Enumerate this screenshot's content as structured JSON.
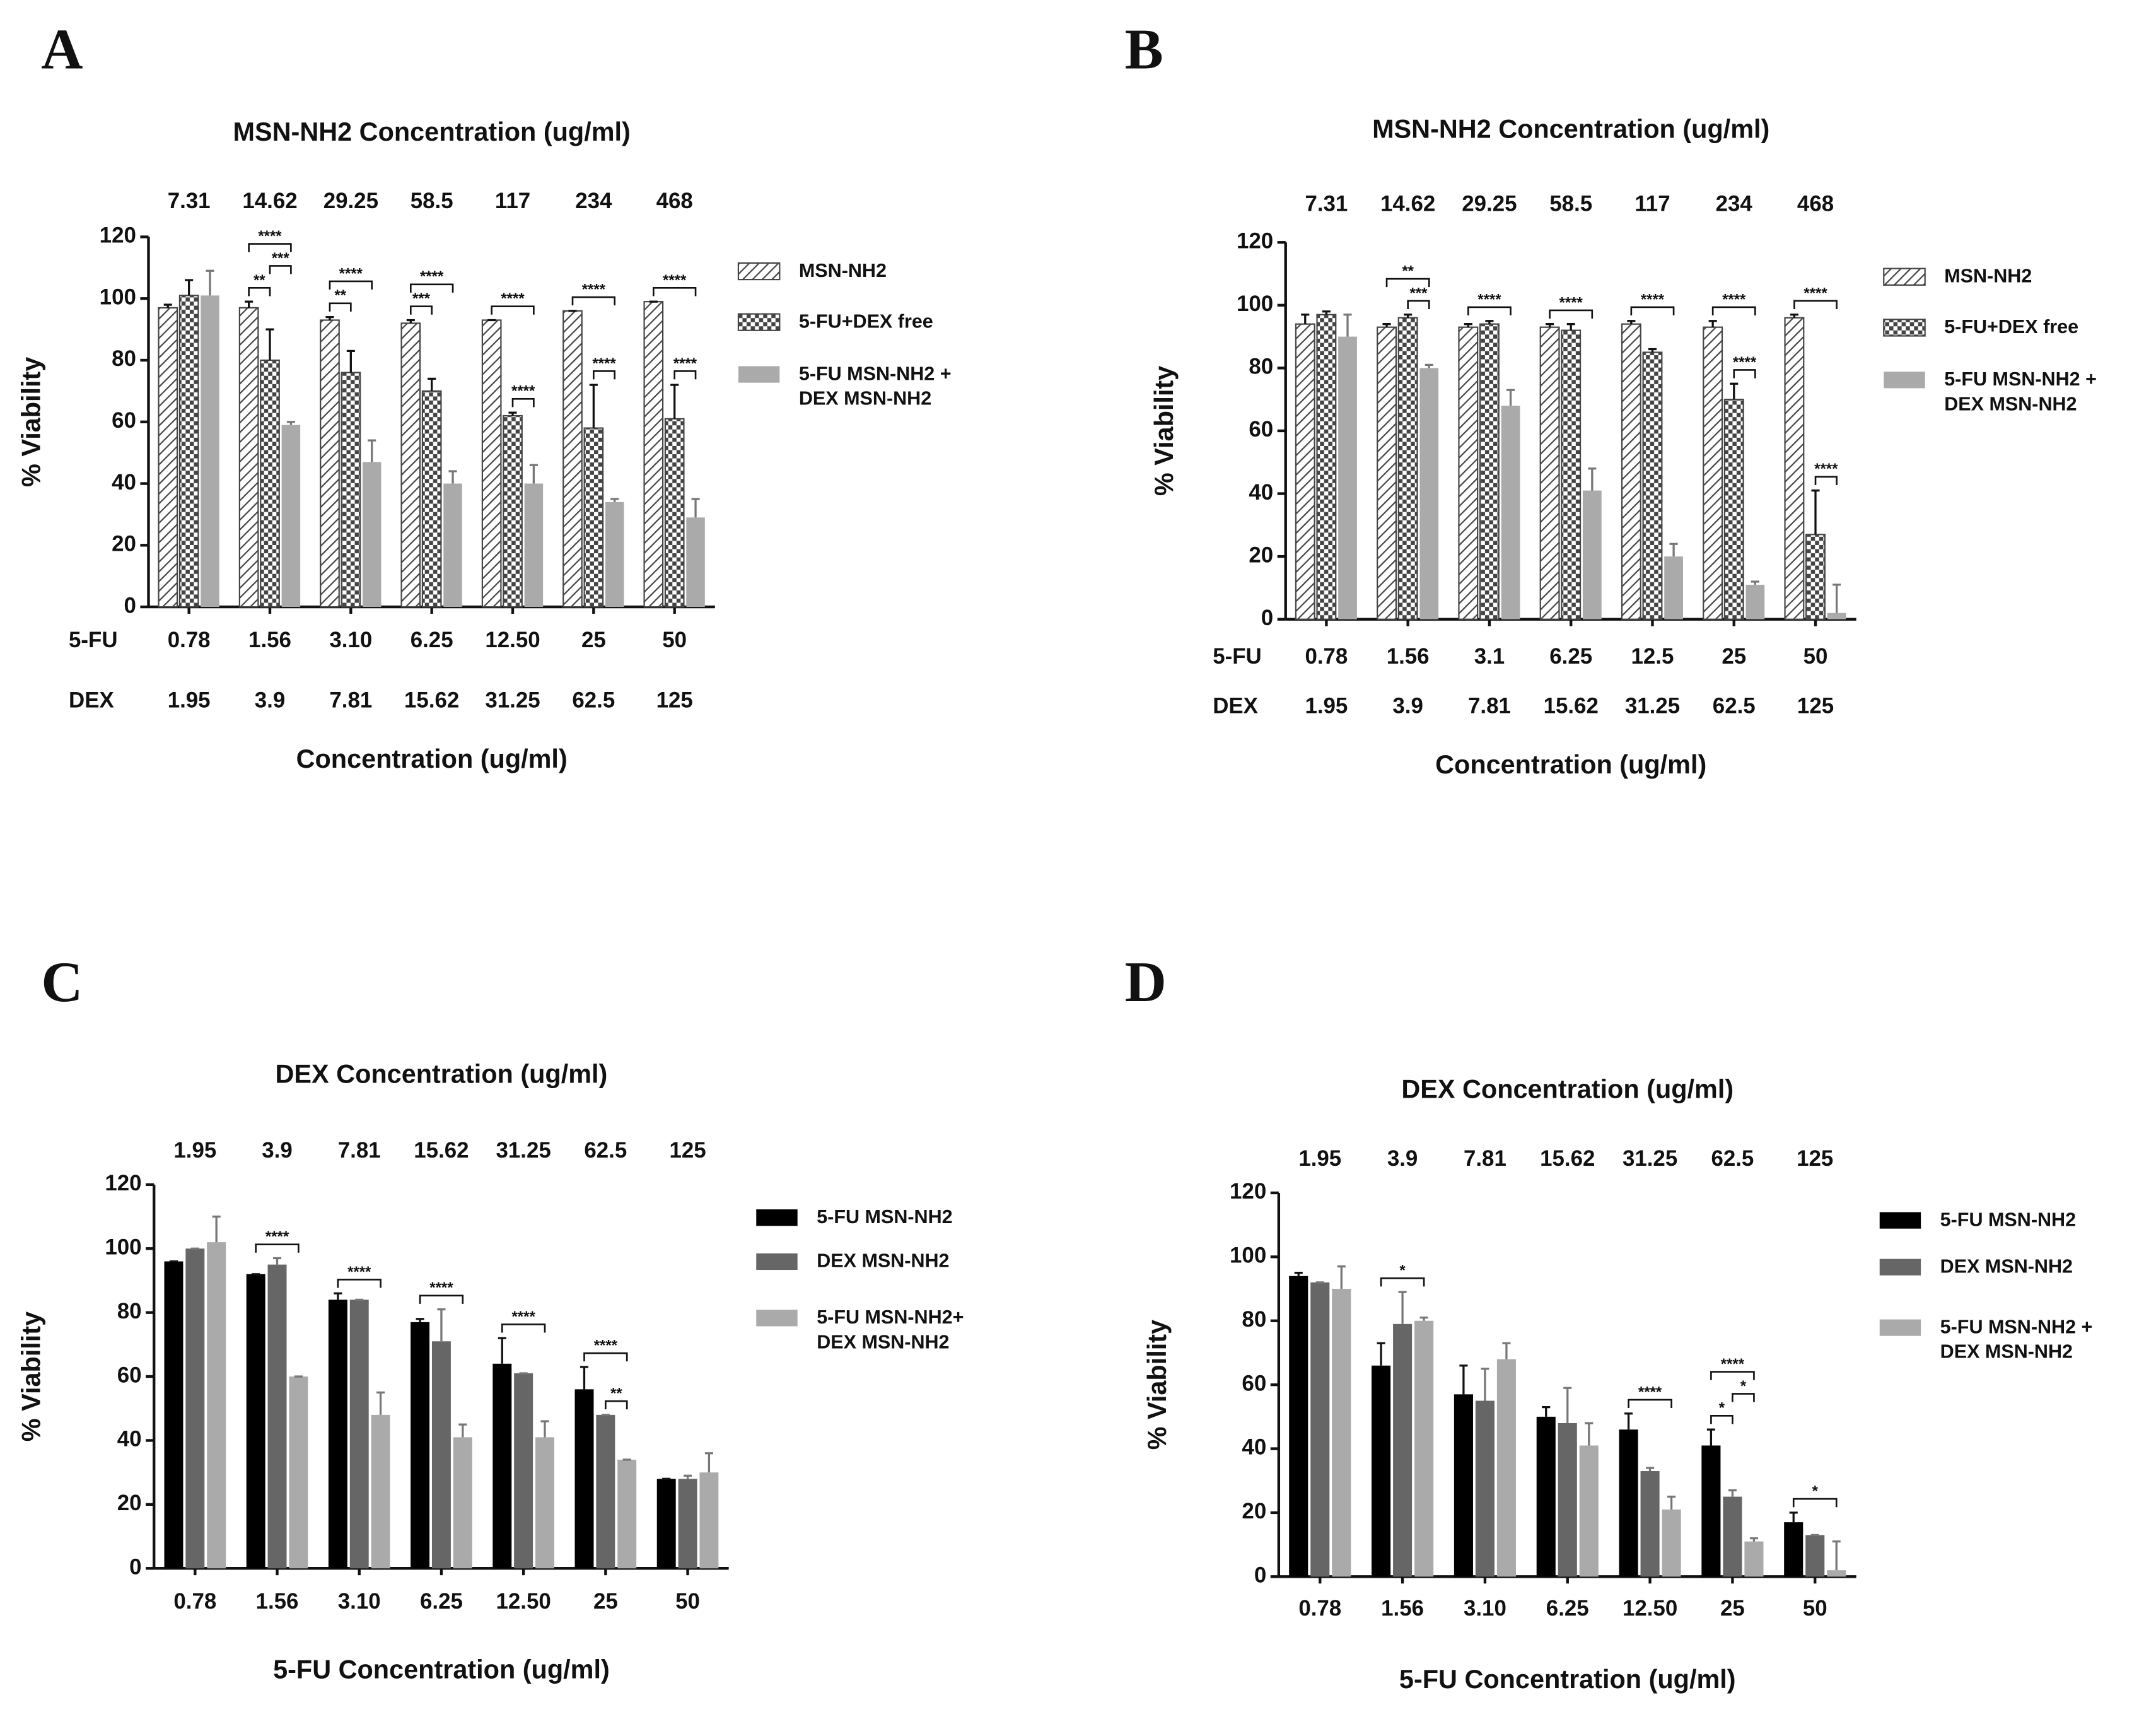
{
  "chart_data": [
    {
      "type": "bar",
      "panel": "A",
      "title": "MSN-NH2 Concentration (ug/ml)",
      "top_categories": [
        "7.31",
        "14.62",
        "29.25",
        "58.5",
        "117",
        "234",
        "468"
      ],
      "categories": [
        "0.78",
        "1.56",
        "3.10",
        "6.25",
        "12.50",
        "25",
        "50"
      ],
      "dex_categories": [
        "1.95",
        "3.9",
        "7.81",
        "15.62",
        "31.25",
        "62.5",
        "125"
      ],
      "row_labels": [
        "5-FU",
        "DEX"
      ],
      "xlabel": "Concentration (ug/ml)",
      "ylabel": "% Viability",
      "ylim": [
        0,
        120
      ],
      "yticks": [
        0,
        20,
        40,
        60,
        80,
        100,
        120
      ],
      "series": [
        {
          "name": "MSN-NH2",
          "color": "#555555",
          "fill_style": "hatch",
          "values": [
            97,
            97,
            93,
            92,
            93,
            96,
            99
          ],
          "errors": [
            1,
            2,
            1,
            1,
            0,
            0,
            0
          ]
        },
        {
          "name": "5-FU+DEX free",
          "color": "#555555",
          "fill_style": "checker",
          "values": [
            101,
            80,
            76,
            70,
            62,
            58,
            61
          ],
          "errors": [
            5,
            10,
            7,
            4,
            1,
            14,
            11
          ]
        },
        {
          "name": "5-FU MSN-NH2 + DEX MSN-NH2",
          "color": "#aaaaaa",
          "fill_style": "solid",
          "values": [
            101,
            59,
            47,
            40,
            40,
            34,
            29
          ],
          "errors": [
            8,
            1,
            7,
            4,
            6,
            1,
            6
          ]
        }
      ],
      "annotations": [
        {
          "label": "**",
          "category": 1,
          "between": [
            0,
            1
          ]
        },
        {
          "label": "***",
          "category": 1,
          "between": [
            1,
            2
          ]
        },
        {
          "label": "****",
          "category": 1,
          "between": [
            0,
            2
          ]
        },
        {
          "label": "**",
          "category": 2,
          "between": [
            0,
            1
          ]
        },
        {
          "label": "****",
          "category": 2,
          "between": [
            0,
            2
          ]
        },
        {
          "label": "***",
          "category": 3,
          "between": [
            0,
            1
          ]
        },
        {
          "label": "****",
          "category": 3,
          "between": [
            0,
            2
          ]
        },
        {
          "label": "****",
          "category": 4,
          "between": [
            1,
            2
          ]
        },
        {
          "label": "****",
          "category": 4,
          "between": [
            0,
            2
          ]
        },
        {
          "label": "****",
          "category": 5,
          "between": [
            1,
            2
          ]
        },
        {
          "label": "****",
          "category": 5,
          "between": [
            0,
            2
          ]
        },
        {
          "label": "****",
          "category": 6,
          "between": [
            1,
            2
          ]
        },
        {
          "label": "****",
          "category": 6,
          "between": [
            0,
            2
          ]
        }
      ]
    },
    {
      "type": "bar",
      "panel": "B",
      "title": "MSN-NH2 Concentration (ug/ml)",
      "top_categories": [
        "7.31",
        "14.62",
        "29.25",
        "58.5",
        "117",
        "234",
        "468"
      ],
      "categories": [
        "0.78",
        "1.56",
        "3.1",
        "6.25",
        "12.5",
        "25",
        "50"
      ],
      "dex_categories": [
        "1.95",
        "3.9",
        "7.81",
        "15.62",
        "31.25",
        "62.5",
        "125"
      ],
      "row_labels": [
        "5-FU",
        "DEX"
      ],
      "xlabel": "Concentration (ug/ml)",
      "ylabel": "% Viability",
      "ylim": [
        0,
        120
      ],
      "yticks": [
        0,
        20,
        40,
        60,
        80,
        100,
        120
      ],
      "series": [
        {
          "name": "MSN-NH2",
          "color": "#555555",
          "fill_style": "hatch",
          "values": [
            94,
            93,
            93,
            93,
            94,
            93,
            96
          ],
          "errors": [
            3,
            1,
            1,
            1,
            1,
            2,
            1
          ]
        },
        {
          "name": "5-FU+DEX free",
          "color": "#555555",
          "fill_style": "checker",
          "values": [
            97,
            96,
            94,
            92,
            85,
            70,
            27
          ],
          "errors": [
            1,
            1,
            1,
            2,
            1,
            5,
            14
          ]
        },
        {
          "name": "5-FU MSN-NH2 + DEX MSN-NH2",
          "color": "#aaaaaa",
          "fill_style": "solid",
          "values": [
            90,
            80,
            68,
            41,
            20,
            11,
            2
          ],
          "errors": [
            7,
            1,
            5,
            7,
            4,
            1,
            9
          ]
        }
      ],
      "annotations": [
        {
          "label": "***",
          "category": 1,
          "between": [
            1,
            2
          ]
        },
        {
          "label": "**",
          "category": 1,
          "between": [
            0,
            2
          ]
        },
        {
          "label": "****",
          "category": 2,
          "between": [
            0,
            2
          ]
        },
        {
          "label": "****",
          "category": 3,
          "between": [
            0,
            2
          ]
        },
        {
          "label": "****",
          "category": 4,
          "between": [
            0,
            2
          ]
        },
        {
          "label": "****",
          "category": 5,
          "between": [
            1,
            2
          ]
        },
        {
          "label": "****",
          "category": 5,
          "between": [
            0,
            2
          ]
        },
        {
          "label": "****",
          "category": 6,
          "between": [
            1,
            2
          ]
        },
        {
          "label": "****",
          "category": 6,
          "between": [
            0,
            2
          ]
        }
      ]
    },
    {
      "type": "bar",
      "panel": "C",
      "title": "DEX Concentration (ug/ml)",
      "top_categories": [
        "1.95",
        "3.9",
        "7.81",
        "15.62",
        "31.25",
        "62.5",
        "125"
      ],
      "categories": [
        "0.78",
        "1.56",
        "3.10",
        "6.25",
        "12.50",
        "25",
        "50"
      ],
      "xlabel": "5-FU Concentration (ug/ml)",
      "ylabel": "% Viability",
      "ylim": [
        0,
        120
      ],
      "yticks": [
        0,
        20,
        40,
        60,
        80,
        100,
        120
      ],
      "series": [
        {
          "name": "5-FU MSN-NH2",
          "color": "#000000",
          "fill_style": "solid",
          "values": [
            96,
            92,
            84,
            77,
            64,
            56,
            28
          ],
          "errors": [
            0,
            0,
            2,
            1,
            8,
            7,
            0
          ]
        },
        {
          "name": "DEX MSN-NH2",
          "color": "#666666",
          "fill_style": "solid",
          "values": [
            100,
            95,
            84,
            71,
            61,
            48,
            28
          ],
          "errors": [
            0,
            2,
            0,
            10,
            0,
            0,
            1
          ]
        },
        {
          "name": "5-FU MSN-NH2+ DEX MSN-NH2",
          "color": "#aaaaaa",
          "fill_style": "solid",
          "values": [
            102,
            60,
            48,
            41,
            41,
            34,
            30
          ],
          "errors": [
            8,
            0,
            7,
            4,
            5,
            0,
            6
          ]
        }
      ],
      "annotations": [
        {
          "label": "****",
          "category": 1,
          "between": [
            0,
            2
          ]
        },
        {
          "label": "****",
          "category": 2,
          "between": [
            0,
            2
          ]
        },
        {
          "label": "****",
          "category": 3,
          "between": [
            0,
            2
          ]
        },
        {
          "label": "****",
          "category": 4,
          "between": [
            0,
            2
          ]
        },
        {
          "label": "**",
          "category": 5,
          "between": [
            1,
            2
          ]
        },
        {
          "label": "****",
          "category": 5,
          "between": [
            0,
            2
          ]
        }
      ]
    },
    {
      "type": "bar",
      "panel": "D",
      "title": "DEX Concentration (ug/ml)",
      "top_categories": [
        "1.95",
        "3.9",
        "7.81",
        "15.62",
        "31.25",
        "62.5",
        "125"
      ],
      "categories": [
        "0.78",
        "1.56",
        "3.10",
        "6.25",
        "12.50",
        "25",
        "50"
      ],
      "xlabel": "5-FU Concentration (ug/ml)",
      "ylabel": "% Viability",
      "ylim": [
        0,
        120
      ],
      "yticks": [
        0,
        20,
        40,
        60,
        80,
        100,
        120
      ],
      "series": [
        {
          "name": "5-FU MSN-NH2",
          "color": "#000000",
          "fill_style": "solid",
          "values": [
            94,
            66,
            57,
            50,
            46,
            41,
            17
          ],
          "errors": [
            1,
            7,
            9,
            3,
            5,
            5,
            3
          ]
        },
        {
          "name": "DEX MSN-NH2",
          "color": "#666666",
          "fill_style": "solid",
          "values": [
            92,
            79,
            55,
            48,
            33,
            25,
            13
          ],
          "errors": [
            0,
            10,
            10,
            11,
            1,
            2,
            0
          ]
        },
        {
          "name": "5-FU MSN-NH2 + DEX MSN-NH2",
          "color": "#aaaaaa",
          "fill_style": "solid",
          "values": [
            90,
            80,
            68,
            41,
            21,
            11,
            2
          ],
          "errors": [
            7,
            1,
            5,
            7,
            4,
            1,
            9
          ]
        }
      ],
      "annotations": [
        {
          "label": "*",
          "category": 1,
          "between": [
            0,
            2
          ]
        },
        {
          "label": "****",
          "category": 4,
          "between": [
            0,
            2
          ]
        },
        {
          "label": "*",
          "category": 5,
          "between": [
            0,
            1
          ]
        },
        {
          "label": "*",
          "category": 5,
          "between": [
            1,
            2
          ]
        },
        {
          "label": "****",
          "category": 5,
          "between": [
            0,
            2
          ]
        },
        {
          "label": "*",
          "category": 6,
          "between": [
            0,
            2
          ]
        }
      ]
    }
  ]
}
